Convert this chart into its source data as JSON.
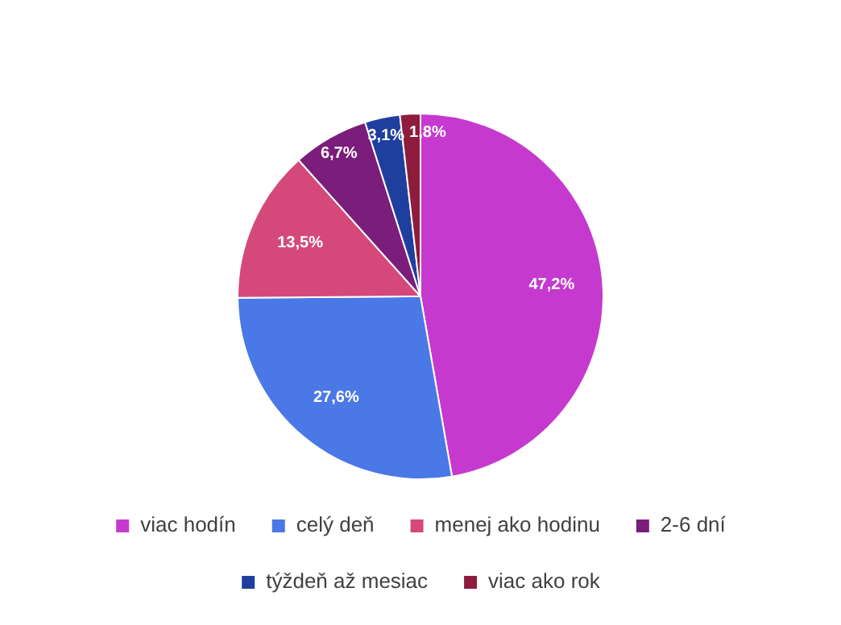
{
  "chart_data": {
    "type": "pie",
    "categories": [
      "viac hodín",
      "celý deň",
      "menej ako hodinu",
      "2-6 dní",
      "týždeň až mesiac",
      "viac ako rok"
    ],
    "values": [
      47.2,
      27.6,
      13.5,
      6.7,
      3.1,
      1.8
    ],
    "colors": [
      "#c639cf",
      "#4a78e6",
      "#d4497a",
      "#7b1d7b",
      "#1f3f9e",
      "#8e1c3c"
    ],
    "value_labels": [
      "47,2%",
      "27,6%",
      "13,5%",
      "6,7%",
      "3,1%",
      "1,8%"
    ],
    "legend": "bottom"
  }
}
